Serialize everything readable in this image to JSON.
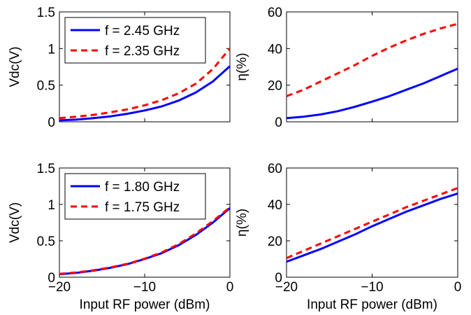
{
  "colors": {
    "blue": "#0000ff",
    "red": "#ff0000",
    "axis": "#000000"
  },
  "chart_data": [
    {
      "type": "line",
      "ylabel": "Vdc(V)",
      "xlabel": "",
      "xlim": [
        -20,
        0
      ],
      "ylim": [
        0,
        1.5
      ],
      "xticks": [],
      "yticks": [
        "0",
        "0.5",
        "1",
        "1.5"
      ],
      "legend_position": "top-left",
      "x": [
        -20,
        -18,
        -16,
        -14,
        -12,
        -10,
        -8,
        -6,
        -4,
        -2,
        0
      ],
      "series": [
        {
          "name": "f = 2.45 GHz",
          "color": "#0000ff",
          "style": "solid",
          "values": [
            0.02,
            0.03,
            0.05,
            0.075,
            0.11,
            0.155,
            0.21,
            0.29,
            0.4,
            0.55,
            0.76
          ]
        },
        {
          "name": "f = 2.35 GHz",
          "color": "#ff0000",
          "style": "dashed",
          "values": [
            0.05,
            0.07,
            0.095,
            0.13,
            0.17,
            0.225,
            0.295,
            0.39,
            0.52,
            0.72,
            1.0
          ]
        }
      ]
    },
    {
      "type": "line",
      "ylabel": "η(%)",
      "xlabel": "",
      "xlim": [
        -20,
        0
      ],
      "ylim": [
        0,
        60
      ],
      "xticks": [],
      "yticks": [
        "0",
        "20",
        "40",
        "60"
      ],
      "x": [
        -20,
        -18,
        -16,
        -14,
        -12,
        -10,
        -8,
        -6,
        -4,
        -2,
        0
      ],
      "series": [
        {
          "name": "f = 2.45 GHz",
          "color": "#0000ff",
          "style": "solid",
          "values": [
            2,
            2.8,
            4.0,
            5.8,
            8.2,
            11.0,
            14.0,
            17.5,
            21.0,
            25.0,
            29.0
          ]
        },
        {
          "name": "f = 2.35 GHz",
          "color": "#ff0000",
          "style": "dashed",
          "values": [
            14,
            17.5,
            22,
            26.5,
            31,
            36,
            40.5,
            44.5,
            48,
            51,
            53.5
          ]
        }
      ]
    },
    {
      "type": "line",
      "ylabel": "Vdc(V)",
      "xlabel": "Input RF power (dBm)",
      "xlim": [
        -20,
        0
      ],
      "ylim": [
        0,
        1.5
      ],
      "xticks": [
        "−20",
        "−10",
        "0"
      ],
      "yticks": [
        "0",
        "0.5",
        "1",
        "1.5"
      ],
      "legend_position": "top-left",
      "x": [
        -20,
        -18,
        -16,
        -14,
        -12,
        -10,
        -8,
        -6,
        -4,
        -2,
        0
      ],
      "series": [
        {
          "name": "f = 1.80 GHz",
          "color": "#0000ff",
          "style": "solid",
          "values": [
            0.04,
            0.06,
            0.09,
            0.13,
            0.18,
            0.25,
            0.33,
            0.44,
            0.58,
            0.75,
            0.95
          ]
        },
        {
          "name": "f = 1.75 GHz",
          "color": "#ff0000",
          "style": "dashed",
          "values": [
            0.045,
            0.065,
            0.095,
            0.135,
            0.185,
            0.255,
            0.34,
            0.455,
            0.6,
            0.77,
            0.96
          ]
        }
      ]
    },
    {
      "type": "line",
      "ylabel": "η(%)",
      "xlabel": "Input RF power (dBm)",
      "xlim": [
        -20,
        0
      ],
      "ylim": [
        0,
        60
      ],
      "xticks": [
        "−20",
        "−10",
        "0"
      ],
      "yticks": [
        "0",
        "20",
        "40",
        "60"
      ],
      "x": [
        -20,
        -18,
        -16,
        -14,
        -12,
        -10,
        -8,
        -6,
        -4,
        -2,
        0
      ],
      "series": [
        {
          "name": "f = 1.80 GHz",
          "color": "#0000ff",
          "style": "solid",
          "values": [
            8.5,
            12,
            15.5,
            19.5,
            23.5,
            28,
            32,
            36,
            39.5,
            43,
            46
          ]
        },
        {
          "name": "f = 1.75 GHz",
          "color": "#ff0000",
          "style": "dashed",
          "values": [
            10.5,
            14.5,
            18.5,
            22.5,
            26.5,
            30.5,
            34.5,
            38.5,
            42,
            45.5,
            49
          ]
        }
      ]
    }
  ]
}
